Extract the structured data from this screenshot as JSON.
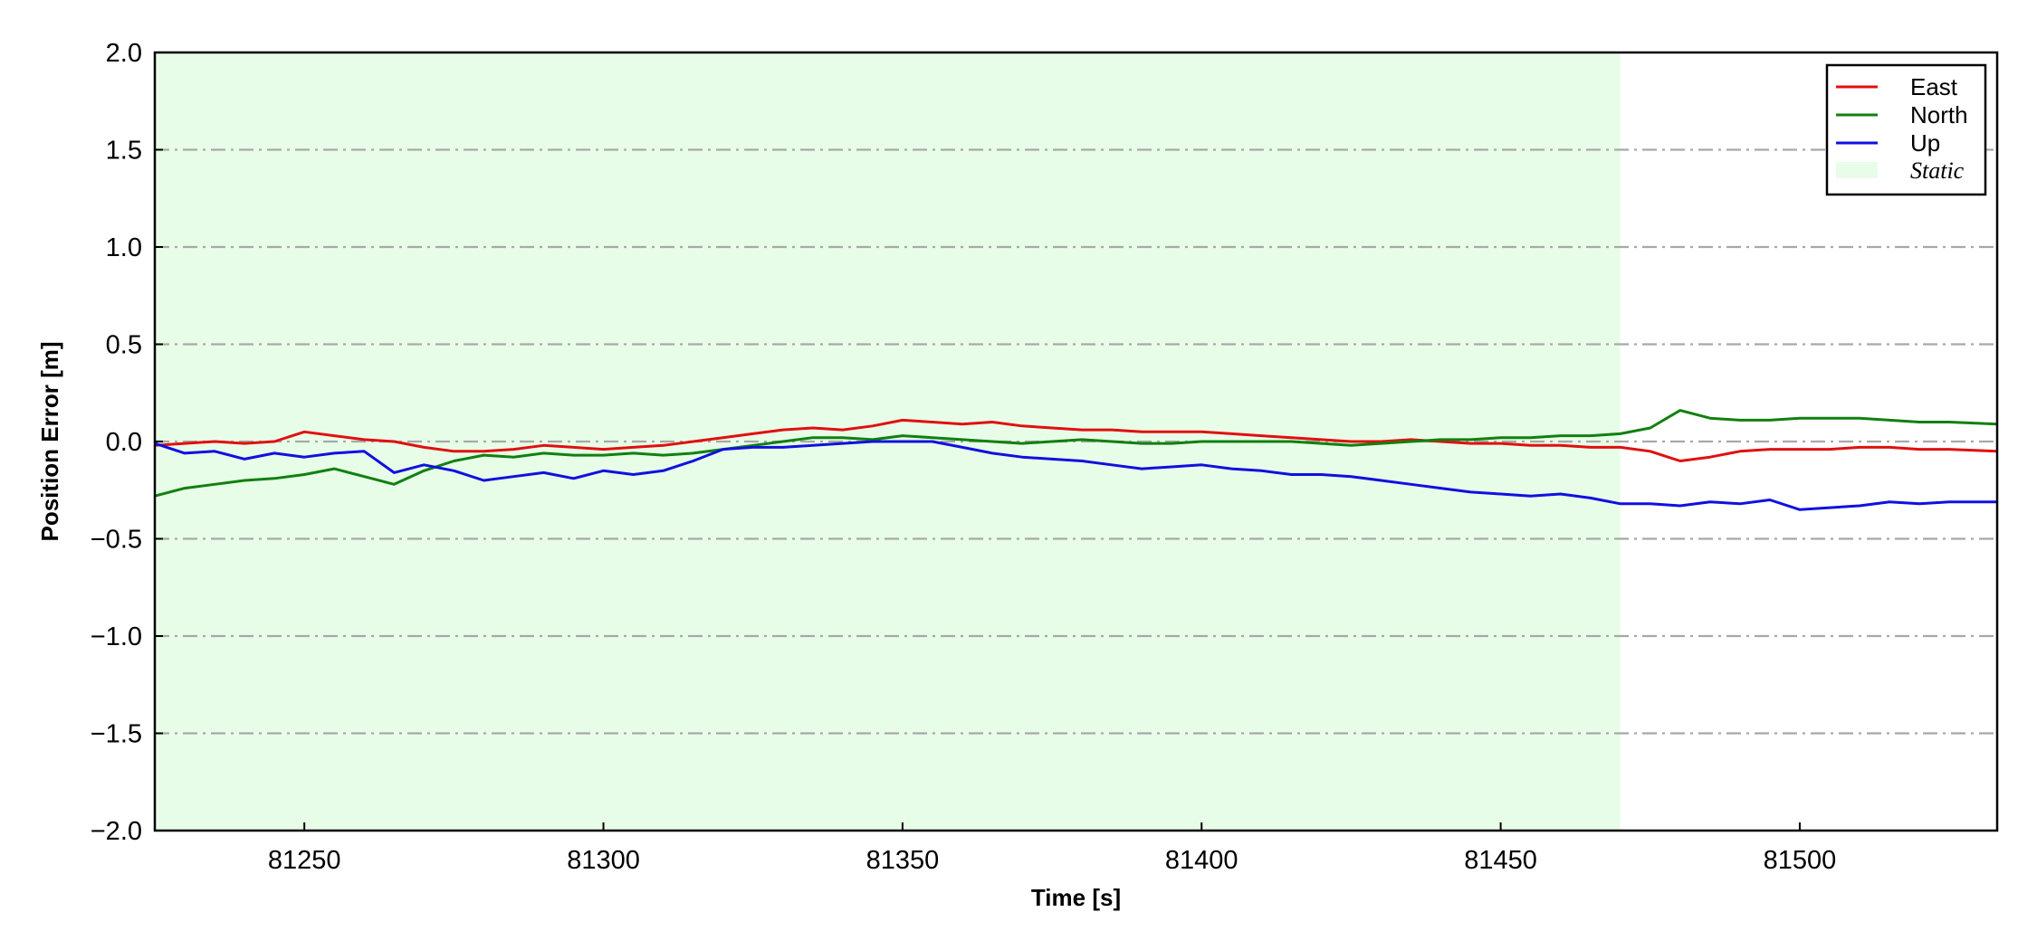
{
  "chart_data": {
    "type": "line",
    "xlabel": "Time [s]",
    "ylabel": "Position Error [m]",
    "xlim": [
      81225,
      81533
    ],
    "ylim": [
      -2.0,
      2.0
    ],
    "xticks": [
      81250,
      81300,
      81350,
      81400,
      81450,
      81500
    ],
    "yticks": [
      -2.0,
      -1.5,
      -1.0,
      -0.5,
      0.0,
      0.5,
      1.0,
      1.5,
      2.0
    ],
    "ytick_labels": [
      "−2.0",
      "−1.5",
      "−1.0",
      "−0.5",
      "0.0",
      "0.5",
      "1.0",
      "1.5",
      "2.0"
    ],
    "grid": "horizontal dash-dot",
    "legend_position": "top-right",
    "shaded_region": {
      "name": "Static",
      "x_start": 81225,
      "x_end": 81470,
      "color": "#e8fde8"
    },
    "series": [
      {
        "name": "East",
        "color": "#e01010",
        "x": [
          81225,
          81230,
          81235,
          81240,
          81245,
          81250,
          81255,
          81260,
          81265,
          81270,
          81275,
          81280,
          81285,
          81290,
          81295,
          81300,
          81305,
          81310,
          81315,
          81320,
          81325,
          81330,
          81335,
          81340,
          81345,
          81350,
          81355,
          81360,
          81365,
          81370,
          81375,
          81380,
          81385,
          81390,
          81395,
          81400,
          81405,
          81410,
          81415,
          81420,
          81425,
          81430,
          81435,
          81440,
          81445,
          81450,
          81455,
          81460,
          81465,
          81470,
          81475,
          81480,
          81485,
          81490,
          81495,
          81500,
          81505,
          81510,
          81515,
          81520,
          81525,
          81533
        ],
        "y": [
          -0.02,
          -0.01,
          0.0,
          -0.01,
          0.0,
          0.05,
          0.03,
          0.01,
          0.0,
          -0.03,
          -0.05,
          -0.05,
          -0.04,
          -0.02,
          -0.03,
          -0.04,
          -0.03,
          -0.02,
          0.0,
          0.02,
          0.04,
          0.06,
          0.07,
          0.06,
          0.08,
          0.11,
          0.1,
          0.09,
          0.1,
          0.08,
          0.07,
          0.06,
          0.06,
          0.05,
          0.05,
          0.05,
          0.04,
          0.03,
          0.02,
          0.01,
          0.0,
          0.0,
          0.01,
          0.0,
          -0.01,
          -0.01,
          -0.02,
          -0.02,
          -0.03,
          -0.03,
          -0.05,
          -0.1,
          -0.08,
          -0.05,
          -0.04,
          -0.04,
          -0.04,
          -0.03,
          -0.03,
          -0.04,
          -0.04,
          -0.05
        ]
      },
      {
        "name": "North",
        "color": "#108010",
        "x": [
          81225,
          81230,
          81235,
          81240,
          81245,
          81250,
          81255,
          81260,
          81265,
          81270,
          81275,
          81280,
          81285,
          81290,
          81295,
          81300,
          81305,
          81310,
          81315,
          81320,
          81325,
          81330,
          81335,
          81340,
          81345,
          81350,
          81355,
          81360,
          81365,
          81370,
          81375,
          81380,
          81385,
          81390,
          81395,
          81400,
          81405,
          81410,
          81415,
          81420,
          81425,
          81430,
          81435,
          81440,
          81445,
          81450,
          81455,
          81460,
          81465,
          81470,
          81475,
          81480,
          81485,
          81490,
          81495,
          81500,
          81505,
          81510,
          81515,
          81520,
          81525,
          81533
        ],
        "y": [
          -0.28,
          -0.24,
          -0.22,
          -0.2,
          -0.19,
          -0.17,
          -0.14,
          -0.18,
          -0.22,
          -0.15,
          -0.1,
          -0.07,
          -0.08,
          -0.06,
          -0.07,
          -0.07,
          -0.06,
          -0.07,
          -0.06,
          -0.04,
          -0.02,
          0.0,
          0.02,
          0.02,
          0.01,
          0.03,
          0.02,
          0.01,
          0.0,
          -0.01,
          0.0,
          0.01,
          0.0,
          -0.01,
          -0.01,
          0.0,
          0.0,
          0.0,
          0.0,
          -0.01,
          -0.02,
          -0.01,
          0.0,
          0.01,
          0.01,
          0.02,
          0.02,
          0.03,
          0.03,
          0.04,
          0.07,
          0.16,
          0.12,
          0.11,
          0.11,
          0.12,
          0.12,
          0.12,
          0.11,
          0.1,
          0.1,
          0.09
        ]
      },
      {
        "name": "Up",
        "color": "#1010e0",
        "x": [
          81225,
          81230,
          81235,
          81240,
          81245,
          81250,
          81255,
          81260,
          81265,
          81270,
          81275,
          81280,
          81285,
          81290,
          81295,
          81300,
          81305,
          81310,
          81315,
          81320,
          81325,
          81330,
          81335,
          81340,
          81345,
          81350,
          81355,
          81360,
          81365,
          81370,
          81375,
          81380,
          81385,
          81390,
          81395,
          81400,
          81405,
          81410,
          81415,
          81420,
          81425,
          81430,
          81435,
          81440,
          81445,
          81450,
          81455,
          81460,
          81465,
          81470,
          81475,
          81480,
          81485,
          81490,
          81495,
          81500,
          81505,
          81510,
          81515,
          81520,
          81525,
          81533
        ],
        "y": [
          -0.01,
          -0.06,
          -0.05,
          -0.09,
          -0.06,
          -0.08,
          -0.06,
          -0.05,
          -0.16,
          -0.12,
          -0.15,
          -0.2,
          -0.18,
          -0.16,
          -0.19,
          -0.15,
          -0.17,
          -0.15,
          -0.1,
          -0.04,
          -0.03,
          -0.03,
          -0.02,
          -0.01,
          0.0,
          0.0,
          0.0,
          -0.03,
          -0.06,
          -0.08,
          -0.09,
          -0.1,
          -0.12,
          -0.14,
          -0.13,
          -0.12,
          -0.14,
          -0.15,
          -0.17,
          -0.17,
          -0.18,
          -0.2,
          -0.22,
          -0.24,
          -0.26,
          -0.27,
          -0.28,
          -0.27,
          -0.29,
          -0.32,
          -0.32,
          -0.33,
          -0.31,
          -0.32,
          -0.3,
          -0.35,
          -0.34,
          -0.33,
          -0.31,
          -0.32,
          -0.31,
          -0.31
        ]
      }
    ]
  }
}
